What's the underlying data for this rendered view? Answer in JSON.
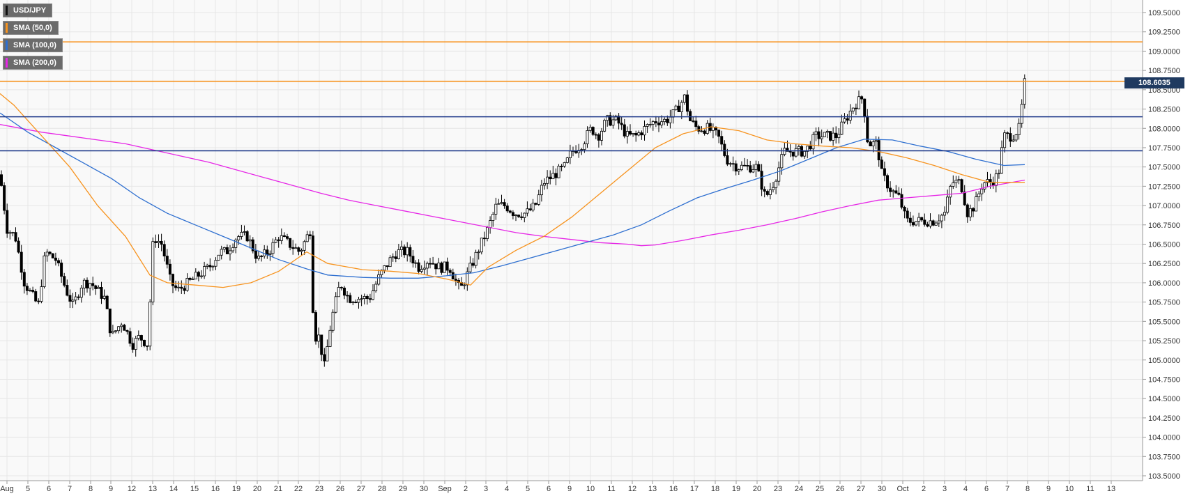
{
  "legend": [
    {
      "label": "USD/JPY",
      "color": "#111111"
    },
    {
      "label": "SMA (50,0)",
      "color": "#f7931e"
    },
    {
      "label": "SMA (100,0)",
      "color": "#2e6fd0"
    },
    {
      "label": "SMA (200,0)",
      "color": "#e626e6"
    }
  ],
  "price_tag": "108.6035",
  "colors": {
    "grid": "#e6e6e6",
    "axis_text": "#333333",
    "resistance_orange": "#f7931e",
    "support_blue": "#1f3a8a",
    "sma50": "#f7931e",
    "sma100": "#2e6fd0",
    "sma200": "#e626e6",
    "candle_up": "#ffffff",
    "candle_down": "#000000"
  },
  "chart_data": {
    "type": "candlestick",
    "instrument": "USD/JPY",
    "ylim": [
      103.5,
      109.6
    ],
    "grid": true,
    "legend_position": "top-left",
    "y_ticks": [
      "103.5000",
      "103.7500",
      "104.0000",
      "104.2500",
      "104.5000",
      "104.7500",
      "105.0000",
      "105.2500",
      "105.5000",
      "105.7500",
      "106.0000",
      "106.2500",
      "106.5000",
      "106.7500",
      "107.0000",
      "107.2500",
      "107.5000",
      "107.7500",
      "108.0000",
      "108.2500",
      "108.5000",
      "108.7500",
      "109.0000",
      "109.2500",
      "109.5000"
    ],
    "x_labels": [
      "Aug",
      "5",
      "6",
      "7",
      "8",
      "9",
      "12",
      "13",
      "14",
      "15",
      "16",
      "19",
      "20",
      "21",
      "22",
      "23",
      "26",
      "27",
      "28",
      "29",
      "30",
      "Sep",
      "2",
      "3",
      "4",
      "5",
      "6",
      "9",
      "10",
      "11",
      "12",
      "13",
      "16",
      "17",
      "18",
      "19",
      "20",
      "23",
      "24",
      "25",
      "26",
      "27",
      "30",
      "Oct",
      "2",
      "3",
      "4",
      "6",
      "7",
      "8",
      "9",
      "10",
      "11",
      "13"
    ],
    "horizontal_levels": [
      {
        "value": 109.12,
        "color": "#f7931e"
      },
      {
        "value": 108.61,
        "color": "#f7931e"
      },
      {
        "value": 108.15,
        "color": "#1f3a8a"
      },
      {
        "value": 107.71,
        "color": "#1f3a8a"
      }
    ],
    "last_price": 108.6035,
    "close_path": [
      [
        0,
        107.4
      ],
      [
        10,
        106.7
      ],
      [
        22,
        106.6
      ],
      [
        35,
        106.0
      ],
      [
        55,
        105.7
      ],
      [
        65,
        106.4
      ],
      [
        80,
        106.3
      ],
      [
        95,
        105.9
      ],
      [
        105,
        105.7
      ],
      [
        118,
        106.0
      ],
      [
        130,
        106.0
      ],
      [
        150,
        105.8
      ],
      [
        160,
        105.3
      ],
      [
        175,
        105.5
      ],
      [
        190,
        105.2
      ],
      [
        200,
        105.3
      ],
      [
        212,
        105.2
      ],
      [
        220,
        106.6
      ],
      [
        232,
        106.5
      ],
      [
        245,
        106.0
      ],
      [
        255,
        105.9
      ],
      [
        270,
        106.0
      ],
      [
        285,
        106.1
      ],
      [
        300,
        106.2
      ],
      [
        315,
        106.4
      ],
      [
        325,
        106.4
      ],
      [
        340,
        106.6
      ],
      [
        355,
        106.6
      ],
      [
        370,
        106.3
      ],
      [
        385,
        106.4
      ],
      [
        400,
        106.6
      ],
      [
        415,
        106.5
      ],
      [
        430,
        106.4
      ],
      [
        446,
        106.7
      ],
      [
        450,
        105.3
      ],
      [
        458,
        105.3
      ],
      [
        465,
        104.9
      ],
      [
        475,
        105.5
      ],
      [
        488,
        106.0
      ],
      [
        500,
        105.8
      ],
      [
        515,
        105.8
      ],
      [
        530,
        105.8
      ],
      [
        545,
        106.1
      ],
      [
        560,
        106.3
      ],
      [
        570,
        106.4
      ],
      [
        585,
        106.4
      ],
      [
        600,
        106.2
      ],
      [
        615,
        106.3
      ],
      [
        630,
        106.2
      ],
      [
        645,
        106.2
      ],
      [
        660,
        105.9
      ],
      [
        675,
        106.2
      ],
      [
        690,
        106.5
      ],
      [
        700,
        106.7
      ],
      [
        712,
        107.0
      ],
      [
        725,
        107.0
      ],
      [
        738,
        106.9
      ],
      [
        755,
        106.9
      ],
      [
        768,
        107.0
      ],
      [
        780,
        107.3
      ],
      [
        795,
        107.4
      ],
      [
        810,
        107.5
      ],
      [
        820,
        107.7
      ],
      [
        835,
        107.8
      ],
      [
        848,
        108.0
      ],
      [
        858,
        107.9
      ],
      [
        870,
        108.1
      ],
      [
        885,
        108.1
      ],
      [
        900,
        107.9
      ],
      [
        912,
        107.9
      ],
      [
        925,
        108.0
      ],
      [
        940,
        108.1
      ],
      [
        955,
        108.1
      ],
      [
        968,
        108.2
      ],
      [
        982,
        108.4
      ],
      [
        990,
        108.1
      ],
      [
        1000,
        108.0
      ],
      [
        1015,
        108.0
      ],
      [
        1030,
        107.9
      ],
      [
        1042,
        107.6
      ],
      [
        1058,
        107.5
      ],
      [
        1070,
        107.5
      ],
      [
        1085,
        107.5
      ],
      [
        1098,
        107.1
      ],
      [
        1110,
        107.3
      ],
      [
        1125,
        107.7
      ],
      [
        1140,
        107.7
      ],
      [
        1155,
        107.7
      ],
      [
        1170,
        107.9
      ],
      [
        1185,
        107.9
      ],
      [
        1200,
        107.9
      ],
      [
        1212,
        108.1
      ],
      [
        1225,
        108.3
      ],
      [
        1238,
        108.4
      ],
      [
        1245,
        107.8
      ],
      [
        1258,
        107.8
      ],
      [
        1265,
        107.4
      ],
      [
        1278,
        107.2
      ],
      [
        1290,
        107.1
      ],
      [
        1300,
        106.8
      ],
      [
        1315,
        106.8
      ],
      [
        1325,
        106.8
      ],
      [
        1340,
        106.8
      ],
      [
        1355,
        106.9
      ],
      [
        1365,
        107.3
      ],
      [
        1378,
        107.3
      ],
      [
        1388,
        106.9
      ],
      [
        1398,
        107.0
      ],
      [
        1410,
        107.3
      ],
      [
        1422,
        107.3
      ],
      [
        1432,
        107.4
      ],
      [
        1440,
        107.9
      ],
      [
        1452,
        107.9
      ],
      [
        1462,
        108.0
      ],
      [
        1470,
        108.6
      ]
    ],
    "sma50": [
      [
        0,
        108.45
      ],
      [
        20,
        108.3
      ],
      [
        60,
        107.9
      ],
      [
        100,
        107.5
      ],
      [
        140,
        107.0
      ],
      [
        180,
        106.6
      ],
      [
        215,
        106.1
      ],
      [
        240,
        106.0
      ],
      [
        280,
        105.97
      ],
      [
        320,
        105.94
      ],
      [
        360,
        106.0
      ],
      [
        400,
        106.15
      ],
      [
        440,
        106.4
      ],
      [
        470,
        106.25
      ],
      [
        520,
        106.17
      ],
      [
        560,
        106.15
      ],
      [
        600,
        106.12
      ],
      [
        640,
        106.05
      ],
      [
        675,
        105.97
      ],
      [
        700,
        106.2
      ],
      [
        740,
        106.42
      ],
      [
        780,
        106.6
      ],
      [
        820,
        106.85
      ],
      [
        860,
        107.15
      ],
      [
        900,
        107.45
      ],
      [
        940,
        107.75
      ],
      [
        980,
        107.93
      ],
      [
        1020,
        108.02
      ],
      [
        1060,
        107.97
      ],
      [
        1100,
        107.85
      ],
      [
        1140,
        107.8
      ],
      [
        1180,
        107.77
      ],
      [
        1220,
        107.75
      ],
      [
        1260,
        107.7
      ],
      [
        1300,
        107.62
      ],
      [
        1340,
        107.52
      ],
      [
        1380,
        107.4
      ],
      [
        1420,
        107.3
      ],
      [
        1470,
        107.3
      ]
    ],
    "sma100": [
      [
        0,
        108.2
      ],
      [
        40,
        107.95
      ],
      [
        80,
        107.75
      ],
      [
        120,
        107.55
      ],
      [
        160,
        107.35
      ],
      [
        200,
        107.1
      ],
      [
        240,
        106.9
      ],
      [
        280,
        106.75
      ],
      [
        320,
        106.6
      ],
      [
        360,
        106.45
      ],
      [
        400,
        106.3
      ],
      [
        440,
        106.18
      ],
      [
        470,
        106.1
      ],
      [
        520,
        106.07
      ],
      [
        560,
        106.06
      ],
      [
        600,
        106.06
      ],
      [
        640,
        106.09
      ],
      [
        680,
        106.13
      ],
      [
        720,
        106.22
      ],
      [
        760,
        106.32
      ],
      [
        800,
        106.42
      ],
      [
        840,
        106.52
      ],
      [
        880,
        106.62
      ],
      [
        920,
        106.75
      ],
      [
        960,
        106.93
      ],
      [
        1000,
        107.1
      ],
      [
        1040,
        107.22
      ],
      [
        1080,
        107.33
      ],
      [
        1120,
        107.45
      ],
      [
        1160,
        107.6
      ],
      [
        1200,
        107.75
      ],
      [
        1240,
        107.86
      ],
      [
        1280,
        107.85
      ],
      [
        1320,
        107.77
      ],
      [
        1360,
        107.7
      ],
      [
        1400,
        107.6
      ],
      [
        1440,
        107.52
      ],
      [
        1470,
        107.53
      ]
    ],
    "sma200": [
      [
        0,
        108.05
      ],
      [
        60,
        107.95
      ],
      [
        100,
        107.9
      ],
      [
        140,
        107.85
      ],
      [
        180,
        107.8
      ],
      [
        220,
        107.72
      ],
      [
        260,
        107.64
      ],
      [
        300,
        107.56
      ],
      [
        340,
        107.46
      ],
      [
        380,
        107.36
      ],
      [
        420,
        107.26
      ],
      [
        460,
        107.16
      ],
      [
        500,
        107.07
      ],
      [
        540,
        107.0
      ],
      [
        580,
        106.93
      ],
      [
        620,
        106.86
      ],
      [
        660,
        106.79
      ],
      [
        700,
        106.72
      ],
      [
        740,
        106.65
      ],
      [
        780,
        106.6
      ],
      [
        820,
        106.56
      ],
      [
        860,
        106.52
      ],
      [
        900,
        106.5
      ],
      [
        920,
        106.48
      ],
      [
        940,
        106.49
      ],
      [
        980,
        106.55
      ],
      [
        1020,
        106.62
      ],
      [
        1060,
        106.68
      ],
      [
        1100,
        106.75
      ],
      [
        1140,
        106.83
      ],
      [
        1180,
        106.92
      ],
      [
        1220,
        107.0
      ],
      [
        1260,
        107.07
      ],
      [
        1300,
        107.1
      ],
      [
        1340,
        107.13
      ],
      [
        1380,
        107.16
      ],
      [
        1420,
        107.25
      ],
      [
        1470,
        107.33
      ]
    ]
  }
}
